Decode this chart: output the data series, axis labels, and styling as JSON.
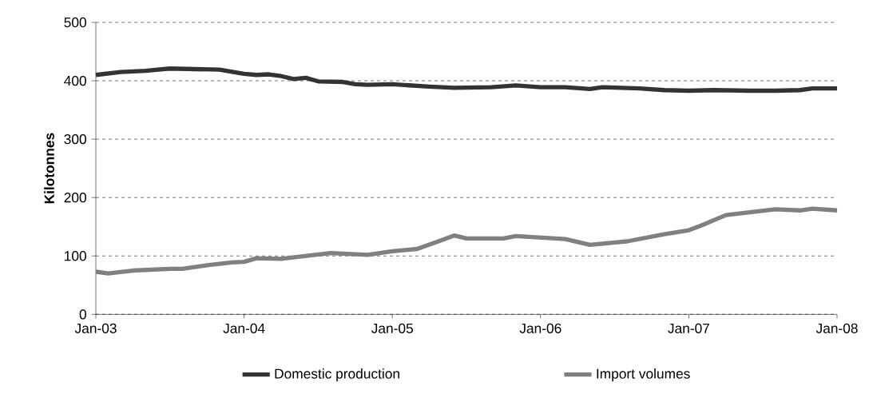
{
  "chart_data": {
    "type": "line",
    "ylabel": "Kilotonnes",
    "x": [
      "2003-01",
      "2003-02",
      "2003-04",
      "2003-07",
      "2003-08",
      "2003-10",
      "2003-12",
      "2004-01",
      "2004-02",
      "2004-04",
      "2004-06",
      "2004-08",
      "2004-11",
      "2005-01",
      "2005-03",
      "2005-05",
      "2005-06",
      "2005-07",
      "2005-10",
      "2005-11",
      "2006-03",
      "2006-05",
      "2006-08",
      "2006-11",
      "2007-01",
      "2007-02",
      "2007-04",
      "2007-08",
      "2007-10",
      "2007-11",
      "2008-01"
    ],
    "series": [
      {
        "name": "Domestic production",
        "color": "#333333",
        "x": [
          "2003-01",
          "2003-03",
          "2003-05",
          "2003-07",
          "2003-09",
          "2003-11",
          "2004-01",
          "2004-02",
          "2004-03",
          "2004-04",
          "2004-05",
          "2004-06",
          "2004-07",
          "2004-09",
          "2004-10",
          "2004-11",
          "2005-01",
          "2005-04",
          "2005-06",
          "2005-09",
          "2005-11",
          "2006-01",
          "2006-03",
          "2006-05",
          "2006-06",
          "2006-09",
          "2006-11",
          "2007-01",
          "2007-03",
          "2007-06",
          "2007-08",
          "2007-10",
          "2007-11",
          "2008-01"
        ],
        "values": [
          410,
          415,
          417,
          421,
          420,
          419,
          412,
          410,
          411,
          408,
          403,
          405,
          399,
          398,
          394,
          393,
          394,
          390,
          388,
          389,
          392,
          389,
          389,
          386,
          389,
          387,
          384,
          383,
          384,
          383,
          383,
          384,
          387,
          387
        ]
      },
      {
        "name": "Import volumes",
        "color": "#808080",
        "values": [
          73,
          70,
          75,
          78,
          78,
          84,
          89,
          90,
          96,
          95,
          100,
          105,
          102,
          108,
          112,
          127,
          135,
          130,
          130,
          134,
          129,
          119,
          125,
          137,
          144,
          152,
          170,
          180,
          178,
          181,
          178
        ]
      }
    ],
    "xlim": [
      "2003-01",
      "2008-01"
    ],
    "xticks": [
      {
        "value": "2003-01",
        "label": "Jan-03"
      },
      {
        "value": "2004-01",
        "label": "Jan-04"
      },
      {
        "value": "2005-01",
        "label": "Jan-05"
      },
      {
        "value": "2006-01",
        "label": "Jan-06"
      },
      {
        "value": "2007-01",
        "label": "Jan-07"
      },
      {
        "value": "2008-01",
        "label": "Jan-08"
      }
    ],
    "ylim": [
      0,
      500
    ],
    "yticks": [
      0,
      100,
      200,
      300,
      400,
      500
    ],
    "grid": "y",
    "legend": "bottom",
    "marker": "none",
    "line_style": "solid"
  }
}
